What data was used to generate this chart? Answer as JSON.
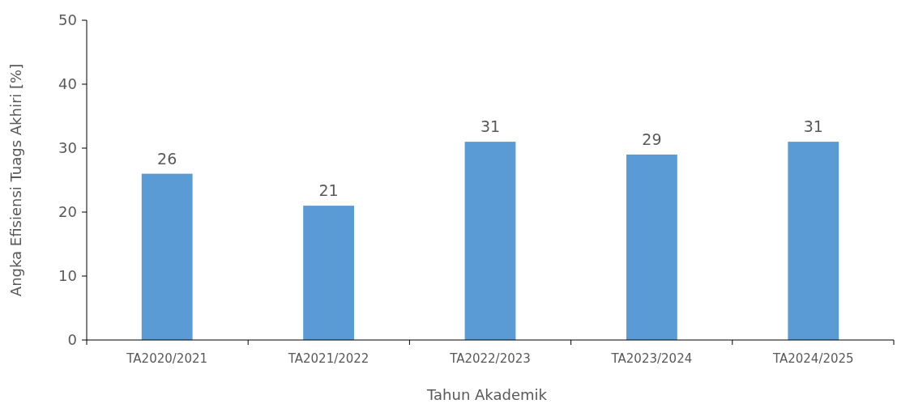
{
  "chart_data": {
    "type": "bar",
    "xlabel": "Tahun Akademik",
    "ylabel": "Angka Efisiensi Tuags Akhiri [%]",
    "categories": [
      "TA2020/2021",
      "TA2021/2022",
      "TA2022/2023",
      "TA2023/2024",
      "TA2024/2025"
    ],
    "values": [
      26,
      21,
      31,
      29,
      31
    ],
    "color": "#5b9bd5",
    "ylim": [
      0,
      50
    ],
    "yticks": [
      0,
      10,
      20,
      30,
      40,
      50
    ],
    "data_labels": true
  }
}
